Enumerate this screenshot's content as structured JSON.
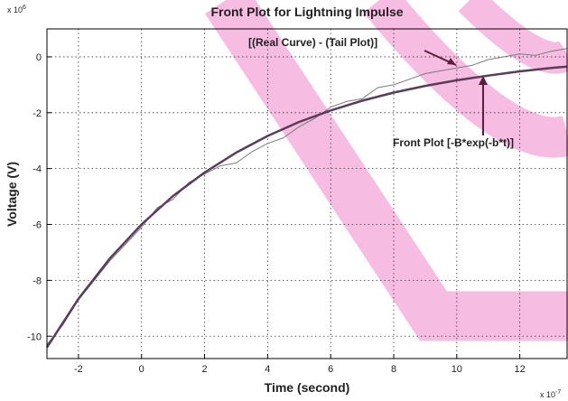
{
  "chart_data": {
    "type": "line",
    "title": "Front Plot for Lightning Impulse",
    "x_label": "Time (second)",
    "y_label": "Voltage (V)",
    "x_multiplier": {
      "base": "x 10",
      "exponent": "-7"
    },
    "y_multiplier": {
      "base": "x 10",
      "exponent": "6"
    },
    "annotations": [
      "[(Real Curve) - (Tail Plot)]",
      "Front Plot  [-B*exp(-b*t)]"
    ],
    "xlim": [
      -3,
      13.5
    ],
    "ylim": [
      -10.8,
      1
    ],
    "xticks": [
      -2,
      0,
      2,
      4,
      6,
      8,
      10,
      12
    ],
    "yticks": [
      -10,
      -8,
      -6,
      -4,
      -2,
      0
    ],
    "grid": true,
    "series": [
      {
        "name": "[(Real Curve) - (Tail Plot)]",
        "color": "#7a7a7a",
        "width": 1,
        "x": [
          -3,
          -2.5,
          -2,
          -1.5,
          -1,
          -0.5,
          0,
          0.5,
          1,
          1.5,
          2,
          2.5,
          3,
          3.5,
          4,
          4.5,
          5,
          5.5,
          6,
          6.5,
          7,
          7.5,
          8,
          8.5,
          9,
          9.5,
          10,
          10.5,
          11,
          11.5,
          12,
          12.5,
          13,
          13.5
        ],
        "values": [
          -10.3,
          -9.6,
          -8.7,
          -8.0,
          -7.3,
          -6.7,
          -6.1,
          -5.4,
          -5.1,
          -4.5,
          -4.2,
          -3.9,
          -3.8,
          -3.4,
          -3.1,
          -2.9,
          -2.5,
          -2.2,
          -1.8,
          -1.6,
          -1.5,
          -1.1,
          -1.0,
          -0.8,
          -0.6,
          -0.5,
          -0.4,
          -0.3,
          -0.1,
          0.0,
          0.1,
          0.05,
          0.2,
          0.3
        ]
      },
      {
        "name": "Front Plot  [-B*exp(-b*t)]",
        "color": "#5b3d5b",
        "width": 2.5,
        "x": [
          -3,
          -2,
          -1,
          0,
          1,
          2,
          3,
          4,
          5,
          6,
          7,
          8,
          9,
          10,
          11,
          12,
          13,
          13.5
        ],
        "values": [
          -10.4,
          -8.66,
          -7.21,
          -6.0,
          -4.98,
          -4.14,
          -3.43,
          -2.83,
          -2.33,
          -1.92,
          -1.57,
          -1.28,
          -1.04,
          -0.84,
          -0.67,
          -0.52,
          -0.4,
          -0.35
        ]
      }
    ]
  }
}
